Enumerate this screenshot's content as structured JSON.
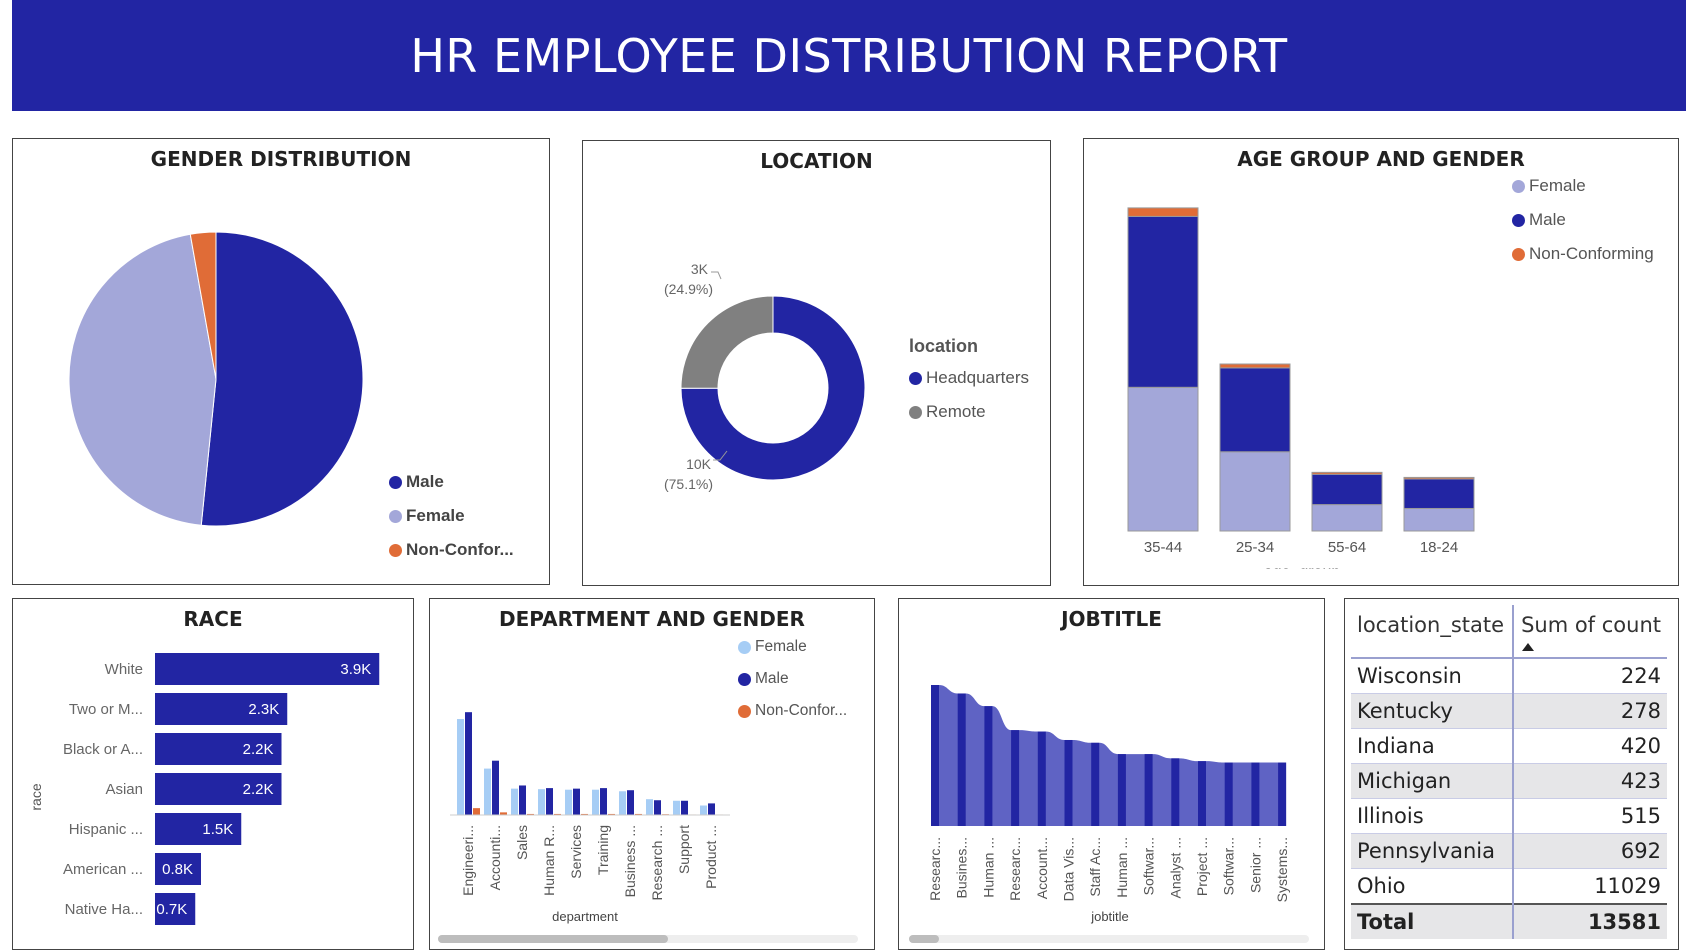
{
  "report_title": "HR EMPLOYEE DISTRIBUTION REPORT",
  "colors": {
    "male": "#2225a3",
    "female": "#a3a7d9",
    "nonconf": "#e06c37",
    "remote": "#808080",
    "dept_female": "#a6cdf5",
    "race_bar": "#2225a3",
    "job_area": "#5f63c4"
  },
  "gender": {
    "title": "GENDER DISTRIBUTION",
    "legend": [
      "Male",
      "Female",
      "Non-Confor..."
    ]
  },
  "location": {
    "title": "LOCATION",
    "legend_title": "location",
    "legend": [
      "Headquarters",
      "Remote"
    ],
    "labels": {
      "remote_value": "3K",
      "remote_pct": "(24.9%)",
      "hq_value": "10K",
      "hq_pct": "(75.1%)"
    }
  },
  "age": {
    "title": "AGE GROUP AND GENDER",
    "legend": [
      "Female",
      "Male",
      "Non-Conforming"
    ],
    "xlabel": "age_group"
  },
  "race": {
    "title": "RACE",
    "ylabel": "race"
  },
  "dept": {
    "title": "DEPARTMENT AND GENDER",
    "legend": [
      "Female",
      "Male",
      "Non-Confor..."
    ],
    "xlabel": "department"
  },
  "job": {
    "title": "JOBTITLE",
    "xlabel": "jobtitle"
  },
  "states": {
    "headers": [
      "location_state",
      "Sum of count"
    ],
    "rows": [
      {
        "state": "Wisconsin",
        "count": "224"
      },
      {
        "state": "Kentucky",
        "count": "278"
      },
      {
        "state": "Indiana",
        "count": "420"
      },
      {
        "state": "Michigan",
        "count": "423"
      },
      {
        "state": "Illinois",
        "count": "515"
      },
      {
        "state": "Pennsylvania",
        "count": "692"
      },
      {
        "state": "Ohio",
        "count": "11029"
      }
    ],
    "total_label": "Total",
    "total_value": "13581"
  },
  "chart_data": [
    {
      "type": "pie",
      "title": "GENDER DISTRIBUTION",
      "categories": [
        "Male",
        "Female",
        "Non-Conforming"
      ],
      "values": [
        51.6,
        45.6,
        2.8
      ]
    },
    {
      "type": "pie",
      "title": "LOCATION",
      "categories": [
        "Headquarters",
        "Remote"
      ],
      "values": [
        10180,
        3401
      ],
      "data_labels": [
        "10K (75.1%)",
        "3K (24.9%)"
      ]
    },
    {
      "type": "bar",
      "title": "AGE GROUP AND GENDER",
      "xlabel": "age_group",
      "stacked": true,
      "categories": [
        "35-44",
        "25-34",
        "55-64",
        "18-24"
      ],
      "series": [
        {
          "name": "Female",
          "values": [
            1850,
            1020,
            340,
            290
          ]
        },
        {
          "name": "Male",
          "values": [
            2200,
            1080,
            390,
            380
          ]
        },
        {
          "name": "Non-Conforming",
          "values": [
            110,
            50,
            25,
            20
          ]
        }
      ],
      "ylim": [
        0,
        4300
      ]
    },
    {
      "type": "bar",
      "orientation": "horizontal",
      "title": "RACE",
      "ylabel": "race",
      "categories": [
        "White",
        "Two or M...",
        "Black or A...",
        "Asian",
        "Hispanic ...",
        "American ...",
        "Native Ha..."
      ],
      "values": [
        3.9,
        2.3,
        2.2,
        2.2,
        1.5,
        0.8,
        0.7
      ],
      "labels": [
        "3.9K",
        "2.3K",
        "2.2K",
        "2.2K",
        "1.5K",
        "0.8K",
        "0.7K"
      ],
      "xlim": [
        0,
        4
      ]
    },
    {
      "type": "bar",
      "title": "DEPARTMENT AND GENDER",
      "xlabel": "department",
      "categories": [
        "Engineeri...",
        "Accounti...",
        "Sales",
        "Human R...",
        "Services",
        "Training",
        "Business ...",
        "Research ...",
        "Support",
        "Product ..."
      ],
      "series": [
        {
          "name": "Female",
          "values": [
            1820,
            880,
            500,
            490,
            480,
            480,
            450,
            300,
            270,
            180
          ]
        },
        {
          "name": "Male",
          "values": [
            1950,
            1030,
            560,
            510,
            500,
            510,
            470,
            280,
            270,
            220
          ]
        },
        {
          "name": "Non-Conforming",
          "values": [
            130,
            50,
            20,
            20,
            20,
            20,
            20,
            15,
            10,
            10
          ]
        }
      ],
      "ylim": [
        0,
        2200
      ]
    },
    {
      "type": "area",
      "title": "JOBTITLE",
      "xlabel": "jobtitle",
      "categories": [
        "Researc...",
        "Busines...",
        "Human ...",
        "Researc...",
        "Account...",
        "Data Vis...",
        "Staff Ac...",
        "Human ...",
        "Softwar...",
        "Analyst ...",
        "Project ...",
        "Softwar...",
        "Senior ...",
        "Systems..."
      ],
      "values": [
        100,
        94,
        85,
        68,
        67,
        61,
        59,
        51,
        51,
        48,
        46,
        45,
        45,
        45
      ],
      "ylim": [
        0,
        100
      ]
    },
    {
      "type": "table",
      "title": "location_state",
      "columns": [
        "location_state",
        "Sum of count"
      ],
      "rows": [
        [
          "Wisconsin",
          224
        ],
        [
          "Kentucky",
          278
        ],
        [
          "Indiana",
          420
        ],
        [
          "Michigan",
          423
        ],
        [
          "Illinois",
          515
        ],
        [
          "Pennsylvania",
          692
        ],
        [
          "Ohio",
          11029
        ]
      ],
      "total": 13581
    }
  ]
}
